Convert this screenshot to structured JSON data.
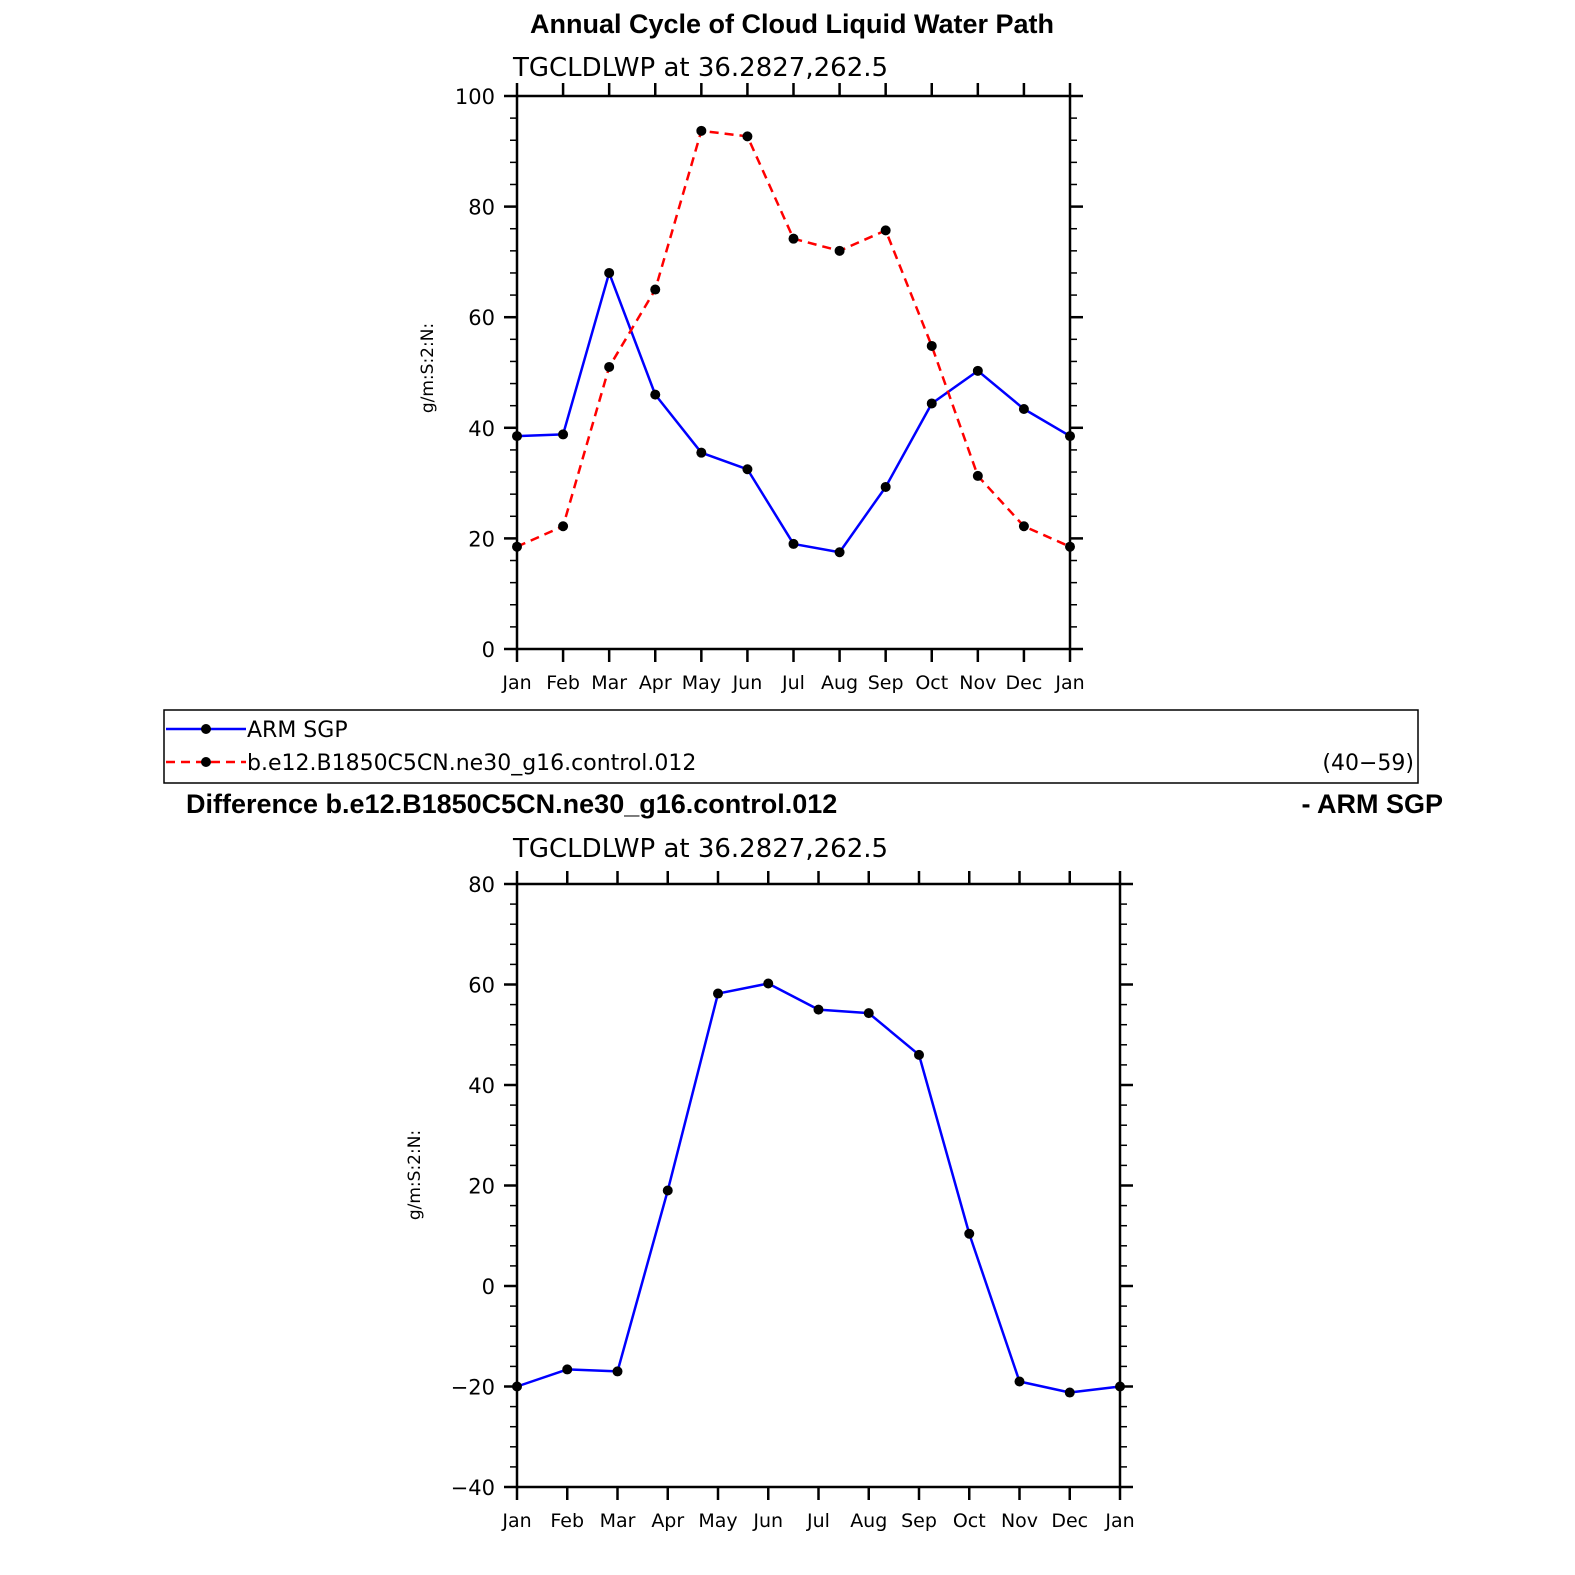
{
  "chart_data": [
    {
      "type": "line",
      "title": "Annual Cycle of Cloud Liquid Water Path",
      "subtitle": "TGCLDLWP  at  36.2827,262.5",
      "ylabel": "g/m:S:2:N:",
      "xlabel": "",
      "ylim": [
        0,
        100
      ],
      "yticks": [
        0,
        20,
        40,
        60,
        80,
        100
      ],
      "categories": [
        "Jan",
        "Feb",
        "Mar",
        "Apr",
        "May",
        "Jun",
        "Jul",
        "Aug",
        "Sep",
        "Oct",
        "Nov",
        "Dec",
        "Jan"
      ],
      "grid": false,
      "series": [
        {
          "name": "ARM  SGP",
          "color": "#0000ff",
          "dash": "solid",
          "values": [
            38.5,
            38.8,
            68.0,
            46.0,
            35.5,
            32.5,
            19.0,
            17.5,
            29.3,
            44.4,
            50.3,
            43.4,
            38.5
          ]
        },
        {
          "name": "b.e12.B1850C5CN.ne30_g16.control.012",
          "color": "#ff0000",
          "dash": "dashed",
          "values": [
            18.5,
            22.2,
            51.0,
            65.0,
            93.7,
            92.7,
            74.2,
            72.0,
            75.7,
            54.8,
            31.3,
            22.2,
            18.5
          ]
        }
      ]
    },
    {
      "type": "line",
      "title": "Difference b.e12.B1850C5CN.ne30_g16.control.012",
      "title_right": "- ARM SGP",
      "subtitle": "TGCLDLWP  at  36.2827,262.5",
      "ylabel": "g/m:S:2:N:",
      "xlabel": "",
      "ylim": [
        -40,
        80
      ],
      "yticks": [
        -40,
        -20,
        0,
        20,
        40,
        60,
        80
      ],
      "ytick_labels": [
        "−40",
        "−20",
        "0",
        "20",
        "40",
        "60",
        "80"
      ],
      "categories": [
        "Jan",
        "Feb",
        "Mar",
        "Apr",
        "May",
        "Jun",
        "Jul",
        "Aug",
        "Sep",
        "Oct",
        "Nov",
        "Dec",
        "Jan"
      ],
      "grid": false,
      "series": [
        {
          "color": "#0000ff",
          "dash": "solid",
          "values": [
            -20.0,
            -16.6,
            -17.0,
            19.0,
            58.2,
            60.2,
            55.0,
            54.3,
            46.0,
            10.4,
            -19.0,
            -21.2,
            -20.0
          ]
        }
      ]
    }
  ],
  "legend": {
    "placement": "between-panels",
    "entries": [
      {
        "label": "ARM  SGP",
        "color": "#0000ff",
        "dash": "solid"
      },
      {
        "label": "b.e12.B1850C5CN.ne30_g16.control.012",
        "color": "#ff0000",
        "dash": "dashed"
      }
    ],
    "period": "(40−59)"
  }
}
